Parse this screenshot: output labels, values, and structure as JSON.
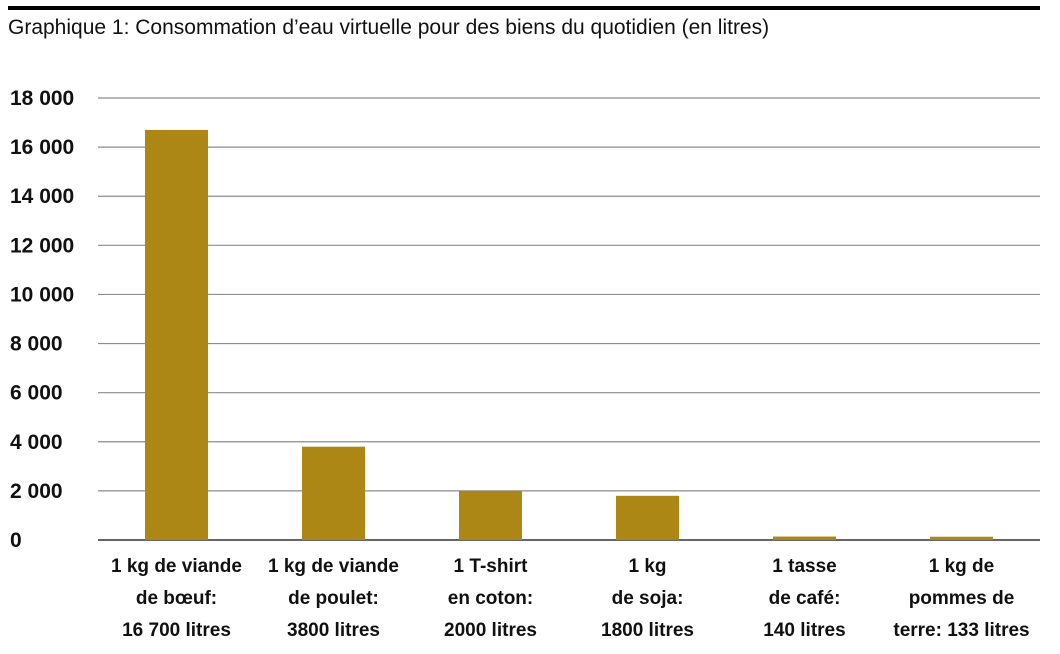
{
  "title": "Graphique 1: Consommation d’eau virtuelle pour des biens du quotidien (en litres)",
  "colors": {
    "bar": "#ad8715",
    "grid": "#8c8c8c",
    "baseline": "#333333"
  },
  "chart_data": {
    "type": "bar",
    "title": "Graphique 1: Consommation d’eau virtuelle pour des biens du quotidien (en litres)",
    "xlabel": "",
    "ylabel": "",
    "ylim": [
      0,
      18000
    ],
    "yticks": [
      0,
      2000,
      4000,
      6000,
      8000,
      10000,
      12000,
      14000,
      16000,
      18000
    ],
    "ytick_labels": [
      "0",
      "2 000",
      "4 000",
      "6 000",
      "8 000",
      "10 000",
      "12 000",
      "14 000",
      "16 000",
      "18 000"
    ],
    "grid": true,
    "categories": [
      [
        "1 kg de viande",
        "de bœuf:",
        "16 700 litres"
      ],
      [
        "1 kg de viande",
        "de poulet:",
        "3800 litres"
      ],
      [
        "1 T-shirt",
        "en coton:",
        "2000 litres"
      ],
      [
        "1 kg",
        "de soja:",
        "1800 litres"
      ],
      [
        "1 tasse",
        "de café:",
        "140 litres"
      ],
      [
        "1 kg de",
        "pommes de",
        "terre: 133 litres"
      ]
    ],
    "values": [
      16700,
      3800,
      2000,
      1800,
      140,
      133
    ]
  }
}
